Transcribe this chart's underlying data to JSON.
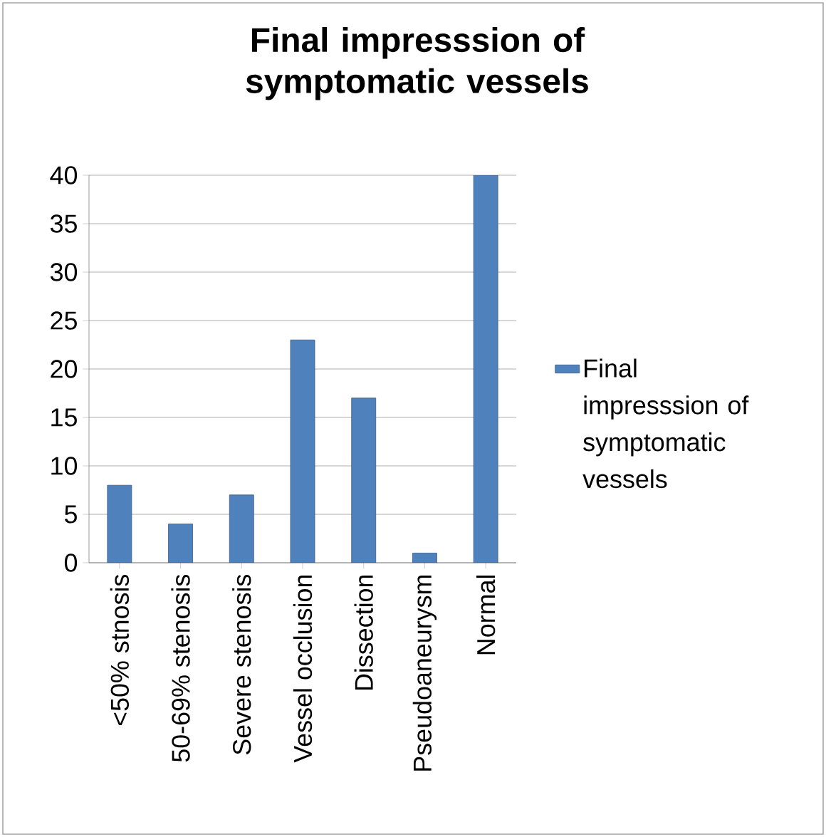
{
  "chart_data": {
    "type": "bar",
    "title": "Final impresssion of symptomatic vessels",
    "categories": [
      "<50% stnosis",
      "50-69% stenosis",
      "Severe stenosis",
      "Vessel occlusion",
      "Dissection",
      "Pseudoaneurysm",
      "Normal"
    ],
    "series": [
      {
        "name": "Final impresssion of symptomatic vessels",
        "color": "#4f81bd",
        "values": [
          8,
          4,
          7,
          23,
          17,
          1,
          40
        ]
      }
    ],
    "ylim": [
      0,
      40
    ],
    "yticks": [
      0,
      5,
      10,
      15,
      20,
      25,
      30,
      35,
      40
    ],
    "grid": "y",
    "legend": "right"
  }
}
